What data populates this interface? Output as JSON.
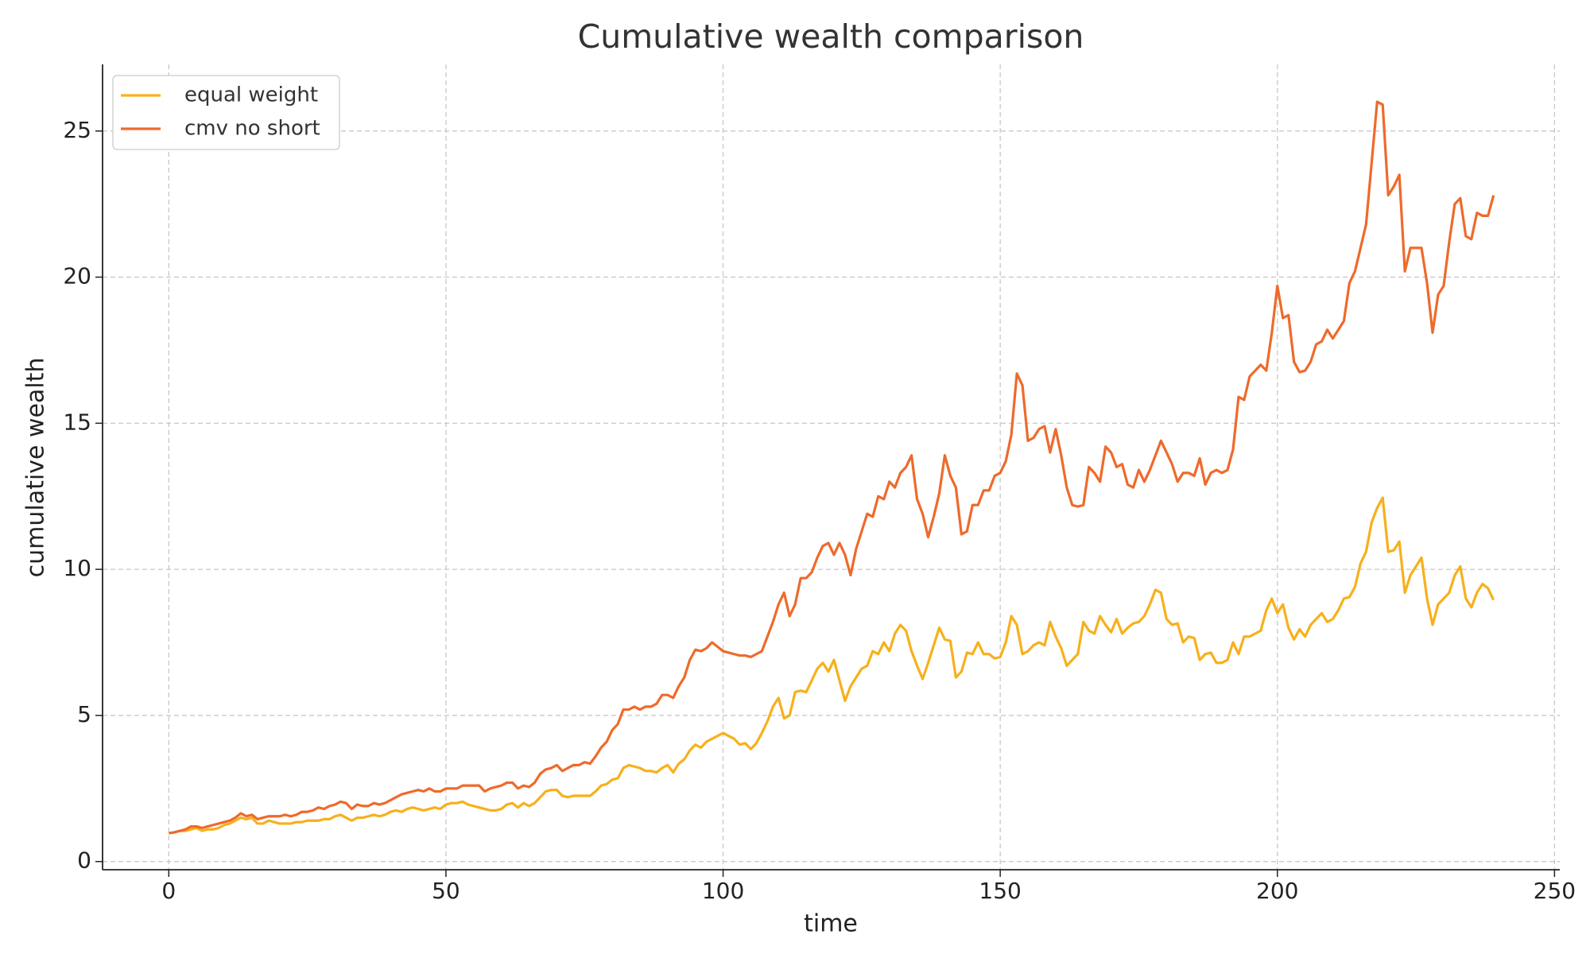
{
  "chart_data": {
    "type": "line",
    "title": "Cumulative wealth comparison",
    "x_label": "time",
    "y_label": "cumulative wealth",
    "x": [
      0,
      1,
      2,
      3,
      4,
      5,
      6,
      7,
      8,
      9,
      10,
      11,
      12,
      13,
      14,
      15,
      16,
      17,
      18,
      19,
      20,
      21,
      22,
      23,
      24,
      25,
      26,
      27,
      28,
      29,
      30,
      31,
      32,
      33,
      34,
      35,
      36,
      37,
      38,
      39,
      40,
      41,
      42,
      43,
      44,
      45,
      46,
      47,
      48,
      49,
      50,
      51,
      52,
      53,
      54,
      55,
      56,
      57,
      58,
      59,
      60,
      61,
      62,
      63,
      64,
      65,
      66,
      67,
      68,
      69,
      70,
      71,
      72,
      73,
      74,
      75,
      76,
      77,
      78,
      79,
      80,
      81,
      82,
      83,
      84,
      85,
      86,
      87,
      88,
      89,
      90,
      91,
      92,
      93,
      94,
      95,
      96,
      97,
      98,
      99,
      100,
      101,
      102,
      103,
      104,
      105,
      106,
      107,
      108,
      109,
      110,
      111,
      112,
      113,
      114,
      115,
      116,
      117,
      118,
      119,
      120,
      121,
      122,
      123,
      124,
      125,
      126,
      127,
      128,
      129,
      130,
      131,
      132,
      133,
      134,
      135,
      136,
      137,
      138,
      139,
      140,
      141,
      142,
      143,
      144,
      145,
      146,
      147,
      148,
      149,
      150,
      151,
      152,
      153,
      154,
      155,
      156,
      157,
      158,
      159,
      160,
      161,
      162,
      163,
      164,
      165,
      166,
      167,
      168,
      169,
      170,
      171,
      172,
      173,
      174,
      175,
      176,
      177,
      178,
      179,
      180,
      181,
      182,
      183,
      184,
      185,
      186,
      187,
      188,
      189,
      190,
      191,
      192,
      193,
      194,
      195,
      196,
      197,
      198,
      199,
      200,
      201,
      202,
      203,
      204,
      205,
      206,
      207,
      208,
      209,
      210,
      211,
      212,
      213,
      214,
      215,
      216,
      217,
      218,
      219,
      220,
      221,
      222,
      223,
      224,
      225,
      226,
      227,
      228,
      229,
      230,
      231,
      232,
      233,
      234,
      235,
      236,
      237,
      238,
      239
    ],
    "series": [
      {
        "name": "equal weight",
        "color": "#f7b01b",
        "values": [
          0.97,
          1.0,
          1.05,
          1.05,
          1.1,
          1.15,
          1.05,
          1.1,
          1.1,
          1.15,
          1.25,
          1.3,
          1.4,
          1.5,
          1.45,
          1.5,
          1.3,
          1.3,
          1.4,
          1.35,
          1.3,
          1.3,
          1.3,
          1.35,
          1.35,
          1.4,
          1.4,
          1.4,
          1.45,
          1.45,
          1.55,
          1.6,
          1.5,
          1.4,
          1.5,
          1.5,
          1.55,
          1.6,
          1.55,
          1.6,
          1.7,
          1.75,
          1.7,
          1.8,
          1.85,
          1.8,
          1.75,
          1.8,
          1.85,
          1.8,
          1.95,
          2.0,
          2.0,
          2.05,
          1.95,
          1.9,
          1.85,
          1.8,
          1.75,
          1.75,
          1.8,
          1.95,
          2.0,
          1.85,
          2.0,
          1.9,
          2.0,
          2.2,
          2.4,
          2.45,
          2.45,
          2.25,
          2.2,
          2.25,
          2.25,
          2.25,
          2.25,
          2.4,
          2.6,
          2.65,
          2.8,
          2.85,
          3.2,
          3.3,
          3.25,
          3.2,
          3.1,
          3.1,
          3.05,
          3.2,
          3.3,
          3.05,
          3.35,
          3.5,
          3.8,
          4.0,
          3.9,
          4.1,
          4.2,
          4.3,
          4.4,
          4.3,
          4.2,
          4.0,
          4.05,
          3.85,
          4.05,
          4.4,
          4.8,
          5.3,
          5.6,
          4.9,
          5.0,
          5.8,
          5.85,
          5.8,
          6.2,
          6.6,
          6.8,
          6.5,
          6.9,
          6.2,
          5.5,
          6.0,
          6.3,
          6.6,
          6.7,
          7.2,
          7.1,
          7.5,
          7.2,
          7.8,
          8.1,
          7.9,
          7.2,
          6.7,
          6.25,
          6.8,
          7.4,
          8.0,
          7.6,
          7.55,
          6.3,
          6.5,
          7.15,
          7.1,
          7.5,
          7.1,
          7.1,
          6.95,
          7.0,
          7.5,
          8.4,
          8.1,
          7.1,
          7.2,
          7.4,
          7.5,
          7.4,
          8.2,
          7.7,
          7.3,
          6.7,
          6.9,
          7.1,
          8.2,
          7.9,
          7.8,
          8.4,
          8.1,
          7.85,
          8.3,
          7.8,
          8.0,
          8.15,
          8.2,
          8.4,
          8.8,
          9.3,
          9.2,
          8.3,
          8.1,
          8.15,
          7.5,
          7.7,
          7.65,
          6.9,
          7.1,
          7.15,
          6.8,
          6.8,
          6.9,
          7.5,
          7.1,
          7.7,
          7.7,
          7.8,
          7.9,
          8.6,
          9.0,
          8.5,
          8.8,
          8.0,
          7.6,
          7.95,
          7.7,
          8.1,
          8.3,
          8.5,
          8.2,
          8.3,
          8.6,
          9.0,
          9.05,
          9.4,
          10.2,
          10.6,
          11.6,
          12.1,
          12.45,
          10.6,
          10.65,
          10.95,
          9.2,
          9.8,
          10.1,
          10.4,
          9.0,
          8.1,
          8.8,
          9.0,
          9.2,
          9.8,
          10.1,
          9.0,
          8.7,
          9.2,
          9.5,
          9.35,
          8.95
        ]
      },
      {
        "name": "cmv no short",
        "color": "#ee6a2b",
        "values": [
          0.97,
          1.0,
          1.05,
          1.1,
          1.2,
          1.2,
          1.15,
          1.2,
          1.25,
          1.3,
          1.35,
          1.4,
          1.5,
          1.65,
          1.55,
          1.6,
          1.45,
          1.5,
          1.55,
          1.55,
          1.55,
          1.6,
          1.55,
          1.6,
          1.7,
          1.7,
          1.75,
          1.85,
          1.8,
          1.9,
          1.95,
          2.05,
          2.0,
          1.8,
          1.95,
          1.9,
          1.9,
          2.0,
          1.95,
          2.0,
          2.1,
          2.2,
          2.3,
          2.35,
          2.4,
          2.45,
          2.4,
          2.5,
          2.4,
          2.4,
          2.5,
          2.5,
          2.5,
          2.6,
          2.6,
          2.6,
          2.6,
          2.4,
          2.5,
          2.55,
          2.6,
          2.7,
          2.7,
          2.5,
          2.6,
          2.55,
          2.7,
          3.0,
          3.15,
          3.2,
          3.3,
          3.1,
          3.2,
          3.3,
          3.3,
          3.4,
          3.35,
          3.6,
          3.9,
          4.1,
          4.5,
          4.7,
          5.2,
          5.2,
          5.3,
          5.2,
          5.3,
          5.3,
          5.4,
          5.7,
          5.7,
          5.6,
          6.0,
          6.3,
          6.9,
          7.25,
          7.2,
          7.3,
          7.5,
          7.35,
          7.2,
          7.15,
          7.1,
          7.05,
          7.05,
          7.0,
          7.1,
          7.2,
          7.7,
          8.2,
          8.8,
          9.2,
          8.4,
          8.8,
          9.7,
          9.7,
          9.9,
          10.4,
          10.8,
          10.9,
          10.5,
          10.9,
          10.5,
          9.8,
          10.7,
          11.3,
          11.9,
          11.8,
          12.5,
          12.4,
          13.0,
          12.8,
          13.3,
          13.5,
          13.9,
          12.4,
          11.9,
          11.1,
          11.8,
          12.6,
          13.9,
          13.2,
          12.8,
          11.2,
          11.3,
          12.2,
          12.2,
          12.7,
          12.7,
          13.2,
          13.3,
          13.7,
          14.6,
          16.7,
          16.3,
          14.4,
          14.5,
          14.8,
          14.9,
          14.0,
          14.8,
          13.9,
          12.8,
          12.2,
          12.15,
          12.2,
          13.5,
          13.3,
          13.0,
          14.2,
          14.0,
          13.5,
          13.6,
          12.9,
          12.8,
          13.4,
          13.0,
          13.4,
          13.9,
          14.4,
          14.0,
          13.6,
          13.0,
          13.3,
          13.3,
          13.2,
          13.8,
          12.9,
          13.3,
          13.4,
          13.3,
          13.4,
          14.1,
          15.9,
          15.8,
          16.6,
          16.8,
          17.0,
          16.8,
          18.1,
          19.7,
          18.6,
          18.7,
          17.1,
          16.75,
          16.8,
          17.1,
          17.7,
          17.8,
          18.2,
          17.9,
          18.2,
          18.5,
          19.8,
          20.2,
          21.0,
          21.8,
          23.9,
          26.0,
          25.9,
          22.8,
          23.1,
          23.5,
          20.2,
          21.0,
          21.0,
          21.0,
          19.8,
          18.1,
          19.4,
          19.7,
          21.2,
          22.5,
          22.7,
          21.4,
          21.3,
          22.2,
          22.1,
          22.1,
          22.8
        ]
      }
    ],
    "xlim": [
      -11.95,
      250.95
    ],
    "ylim": [
      -0.28,
      27.28
    ],
    "xticks": [
      0,
      50,
      100,
      150,
      200,
      250
    ],
    "yticks": [
      0,
      5,
      10,
      15,
      20,
      25
    ],
    "grid": true,
    "legend": "upper left"
  }
}
